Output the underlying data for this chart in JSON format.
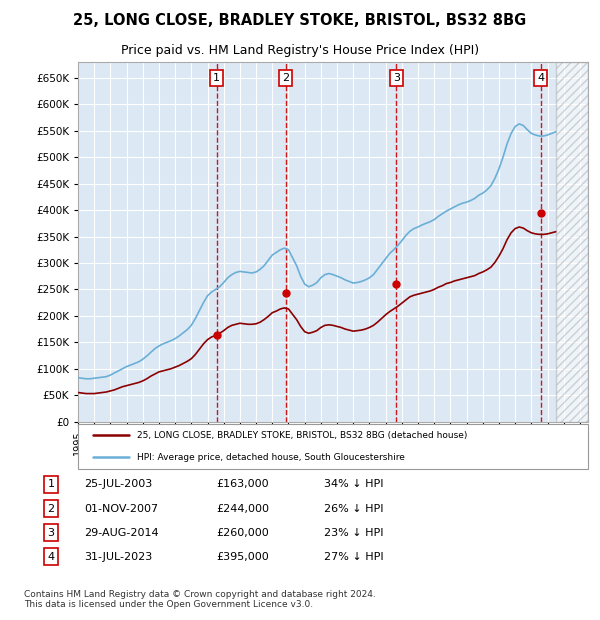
{
  "title": "25, LONG CLOSE, BRADLEY STOKE, BRISTOL, BS32 8BG",
  "subtitle": "Price paid vs. HM Land Registry's House Price Index (HPI)",
  "ylim": [
    0,
    680000
  ],
  "yticks": [
    0,
    50000,
    100000,
    150000,
    200000,
    250000,
    300000,
    350000,
    400000,
    450000,
    500000,
    550000,
    600000,
    650000
  ],
  "xlim_start": 1995.0,
  "xlim_end": 2026.5,
  "background_color": "#ffffff",
  "plot_bg_color": "#dce9f5",
  "grid_color": "#ffffff",
  "hpi_line_color": "#6baed6",
  "price_line_color": "#8b0000",
  "sale_marker_color": "#cc0000",
  "sale_dashed_color": "#cc0000",
  "legend_hpi_label": "HPI: Average price, detached house, South Gloucestershire",
  "legend_price_label": "25, LONG CLOSE, BRADLEY STOKE, BRISTOL, BS32 8BG (detached house)",
  "footer_text": "Contains HM Land Registry data © Crown copyright and database right 2024.\nThis data is licensed under the Open Government Licence v3.0.",
  "sales": [
    {
      "num": 1,
      "date_num": 2003.56,
      "price": 163000,
      "label": "25-JUL-2003",
      "price_str": "£163,000",
      "hpi_str": "34% ↓ HPI"
    },
    {
      "num": 2,
      "date_num": 2007.83,
      "price": 244000,
      "label": "01-NOV-2007",
      "price_str": "£244,000",
      "hpi_str": "26% ↓ HPI"
    },
    {
      "num": 3,
      "date_num": 2014.66,
      "price": 260000,
      "label": "29-AUG-2014",
      "price_str": "£260,000",
      "hpi_str": "23% ↓ HPI"
    },
    {
      "num": 4,
      "date_num": 2023.58,
      "price": 395000,
      "label": "31-JUL-2023",
      "price_str": "£395,000",
      "hpi_str": "27% ↓ HPI"
    }
  ],
  "hpi_data_x": [
    1995.0,
    1995.25,
    1995.5,
    1995.75,
    1996.0,
    1996.25,
    1996.5,
    1996.75,
    1997.0,
    1997.25,
    1997.5,
    1997.75,
    1998.0,
    1998.25,
    1998.5,
    1998.75,
    1999.0,
    1999.25,
    1999.5,
    1999.75,
    2000.0,
    2000.25,
    2000.5,
    2000.75,
    2001.0,
    2001.25,
    2001.5,
    2001.75,
    2002.0,
    2002.25,
    2002.5,
    2002.75,
    2003.0,
    2003.25,
    2003.5,
    2003.75,
    2004.0,
    2004.25,
    2004.5,
    2004.75,
    2005.0,
    2005.25,
    2005.5,
    2005.75,
    2006.0,
    2006.25,
    2006.5,
    2006.75,
    2007.0,
    2007.25,
    2007.5,
    2007.75,
    2008.0,
    2008.25,
    2008.5,
    2008.75,
    2009.0,
    2009.25,
    2009.5,
    2009.75,
    2010.0,
    2010.25,
    2010.5,
    2010.75,
    2011.0,
    2011.25,
    2011.5,
    2011.75,
    2012.0,
    2012.25,
    2012.5,
    2012.75,
    2013.0,
    2013.25,
    2013.5,
    2013.75,
    2014.0,
    2014.25,
    2014.5,
    2014.75,
    2015.0,
    2015.25,
    2015.5,
    2015.75,
    2016.0,
    2016.25,
    2016.5,
    2016.75,
    2017.0,
    2017.25,
    2017.5,
    2017.75,
    2018.0,
    2018.25,
    2018.5,
    2018.75,
    2019.0,
    2019.25,
    2019.5,
    2019.75,
    2020.0,
    2020.25,
    2020.5,
    2020.75,
    2021.0,
    2021.25,
    2021.5,
    2021.75,
    2022.0,
    2022.25,
    2022.5,
    2022.75,
    2023.0,
    2023.25,
    2023.5,
    2023.75,
    2024.0,
    2024.25,
    2024.5
  ],
  "hpi_data_y": [
    83000,
    82000,
    81000,
    81000,
    82000,
    83000,
    84000,
    85000,
    88000,
    92000,
    96000,
    100000,
    104000,
    107000,
    110000,
    113000,
    118000,
    124000,
    131000,
    138000,
    143000,
    147000,
    150000,
    153000,
    157000,
    162000,
    168000,
    174000,
    182000,
    195000,
    210000,
    225000,
    238000,
    245000,
    250000,
    255000,
    263000,
    272000,
    278000,
    282000,
    284000,
    283000,
    282000,
    281000,
    283000,
    288000,
    295000,
    305000,
    315000,
    320000,
    325000,
    328000,
    325000,
    310000,
    295000,
    275000,
    260000,
    255000,
    258000,
    263000,
    272000,
    278000,
    280000,
    278000,
    275000,
    272000,
    268000,
    265000,
    262000,
    263000,
    265000,
    268000,
    272000,
    278000,
    288000,
    298000,
    308000,
    318000,
    325000,
    333000,
    342000,
    352000,
    360000,
    365000,
    368000,
    372000,
    375000,
    378000,
    382000,
    388000,
    393000,
    398000,
    402000,
    406000,
    410000,
    413000,
    415000,
    418000,
    422000,
    428000,
    432000,
    438000,
    446000,
    460000,
    478000,
    500000,
    525000,
    545000,
    558000,
    563000,
    560000,
    552000,
    545000,
    542000,
    540000,
    540000,
    542000,
    545000,
    548000
  ],
  "price_hpi_line_x": [
    1995.0,
    1995.25,
    1995.5,
    1995.75,
    1996.0,
    1996.25,
    1996.5,
    1996.75,
    1997.0,
    1997.25,
    1997.5,
    1997.75,
    1998.0,
    1998.25,
    1998.5,
    1998.75,
    1999.0,
    1999.25,
    1999.5,
    1999.75,
    2000.0,
    2000.25,
    2000.5,
    2000.75,
    2001.0,
    2001.25,
    2001.5,
    2001.75,
    2002.0,
    2002.25,
    2002.5,
    2002.75,
    2003.0,
    2003.25,
    2003.5,
    2003.75,
    2004.0,
    2004.25,
    2004.5,
    2004.75,
    2005.0,
    2005.25,
    2005.5,
    2005.75,
    2006.0,
    2006.25,
    2006.5,
    2006.75,
    2007.0,
    2007.25,
    2007.5,
    2007.75,
    2008.0,
    2008.25,
    2008.5,
    2008.75,
    2009.0,
    2009.25,
    2009.5,
    2009.75,
    2010.0,
    2010.25,
    2010.5,
    2010.75,
    2011.0,
    2011.25,
    2011.5,
    2011.75,
    2012.0,
    2012.25,
    2012.5,
    2012.75,
    2013.0,
    2013.25,
    2013.5,
    2013.75,
    2014.0,
    2014.25,
    2014.5,
    2014.75,
    2015.0,
    2015.25,
    2015.5,
    2015.75,
    2016.0,
    2016.25,
    2016.5,
    2016.75,
    2017.0,
    2017.25,
    2017.5,
    2017.75,
    2018.0,
    2018.25,
    2018.5,
    2018.75,
    2019.0,
    2019.25,
    2019.5,
    2019.75,
    2020.0,
    2020.25,
    2020.5,
    2020.75,
    2021.0,
    2021.25,
    2021.5,
    2021.75,
    2022.0,
    2022.25,
    2022.5,
    2022.75,
    2023.0,
    2023.25,
    2023.5,
    2023.75,
    2024.0,
    2024.25,
    2024.5
  ],
  "price_hpi_line_y": [
    55000,
    54000,
    53000,
    53000,
    53000,
    54000,
    55000,
    56000,
    58000,
    60000,
    63000,
    66000,
    68000,
    70000,
    72000,
    74000,
    77000,
    81000,
    86000,
    90000,
    94000,
    96000,
    98000,
    100000,
    103000,
    106000,
    110000,
    114000,
    119000,
    127000,
    137000,
    147000,
    155000,
    160000,
    163000,
    167000,
    172000,
    178000,
    182000,
    184000,
    186000,
    185000,
    184000,
    184000,
    185000,
    188000,
    193000,
    199000,
    206000,
    209000,
    213000,
    215000,
    213000,
    203000,
    193000,
    180000,
    170000,
    167000,
    169000,
    172000,
    178000,
    182000,
    183000,
    182000,
    180000,
    178000,
    175000,
    173000,
    171000,
    172000,
    173000,
    175000,
    178000,
    182000,
    188000,
    195000,
    202000,
    208000,
    213000,
    218000,
    224000,
    230000,
    236000,
    239000,
    241000,
    243000,
    245000,
    247000,
    250000,
    254000,
    257000,
    261000,
    263000,
    266000,
    268000,
    270000,
    272000,
    274000,
    276000,
    280000,
    283000,
    287000,
    292000,
    301000,
    313000,
    327000,
    344000,
    357000,
    365000,
    368000,
    366000,
    361000,
    357000,
    355000,
    354000,
    354000,
    355000,
    357000,
    359000
  ]
}
